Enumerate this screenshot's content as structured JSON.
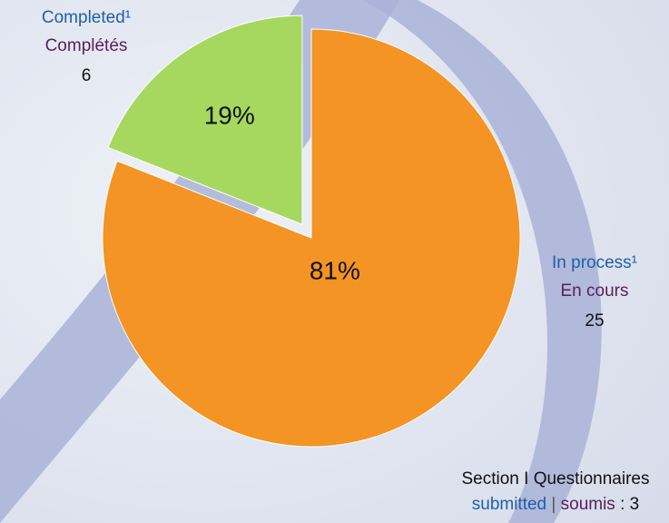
{
  "chart_data": {
    "type": "pie",
    "categories": [
      "Completed¹",
      "In process¹"
    ],
    "categories_fr": [
      "Complétés",
      "En cours"
    ],
    "counts": [
      6,
      25
    ],
    "values": [
      19,
      81
    ],
    "value_labels": [
      "19%",
      "81%"
    ],
    "colors": [
      "#a6d85f",
      "#f39424"
    ],
    "note": {
      "line1": "Section I Questionnaires",
      "en": "submitted",
      "divider": "|",
      "fr": "soumis",
      "colon": ":",
      "count": 3
    }
  }
}
